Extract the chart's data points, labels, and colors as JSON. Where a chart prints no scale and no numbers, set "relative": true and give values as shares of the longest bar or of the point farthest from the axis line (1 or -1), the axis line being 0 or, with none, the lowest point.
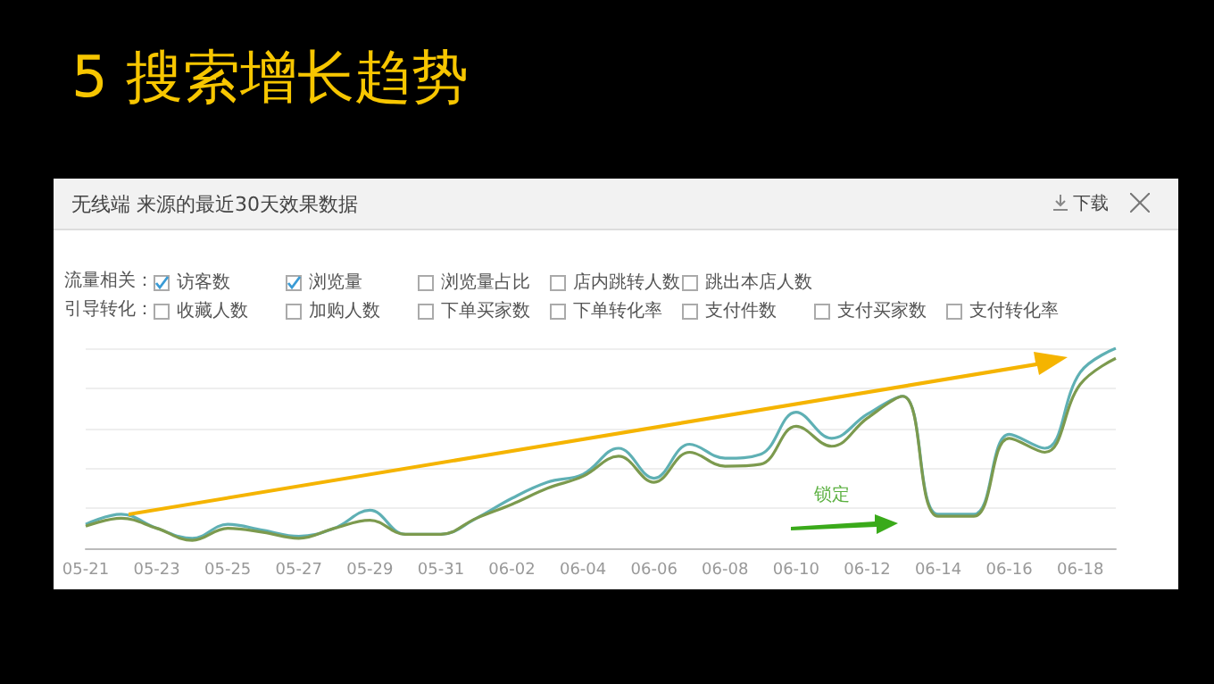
{
  "chart_data": {
    "type": "line",
    "title": "5 搜索增长趋势",
    "relative": true,
    "grid": "y",
    "marker": "none",
    "categories": [
      "05-21",
      null,
      "05-23",
      null,
      "05-25",
      null,
      "05-27",
      null,
      "05-29",
      null,
      "05-31",
      null,
      "06-02",
      null,
      "06-04",
      null,
      "06-06",
      null,
      "06-08",
      null,
      "06-10",
      null,
      "06-12",
      null,
      "06-14",
      null,
      "06-16",
      null,
      "06-18",
      null
    ],
    "series": [
      {
        "color": "#5fb0b4",
        "values": [
          0.12,
          0.17,
          0.1,
          0.05,
          0.12,
          0.09,
          0.06,
          0.1,
          0.19,
          0.07,
          0.07,
          0.15,
          0.25,
          0.33,
          0.37,
          0.5,
          0.35,
          0.52,
          0.45,
          0.47,
          0.68,
          0.55,
          0.67,
          0.76,
          0.17,
          0.17,
          0.57,
          0.5,
          0.88,
          1
        ]
      },
      {
        "color": "#7c9a4e",
        "values": [
          0.11,
          0.15,
          0.1,
          0.04,
          0.1,
          0.08,
          0.05,
          0.1,
          0.14,
          0.07,
          0.07,
          0.15,
          0.22,
          0.3,
          0.36,
          0.46,
          0.33,
          0.48,
          0.41,
          0.42,
          0.61,
          0.51,
          0.65,
          0.76,
          0.16,
          0.16,
          0.55,
          0.48,
          0.82,
          0.95
        ]
      }
    ],
    "annotations": [
      "无线端 来源的最近30天效果数据",
      "下载",
      "流量相关：",
      "访客数",
      "浏览量",
      "浏览量占比",
      "店内跳转人数",
      "跳出本店人数",
      "引导转化：",
      "收藏人数",
      "加购人数",
      "下单买家数",
      "下单转化率",
      "支付件数",
      "支付买家数",
      "支付转化率",
      "锁定"
    ]
  }
}
